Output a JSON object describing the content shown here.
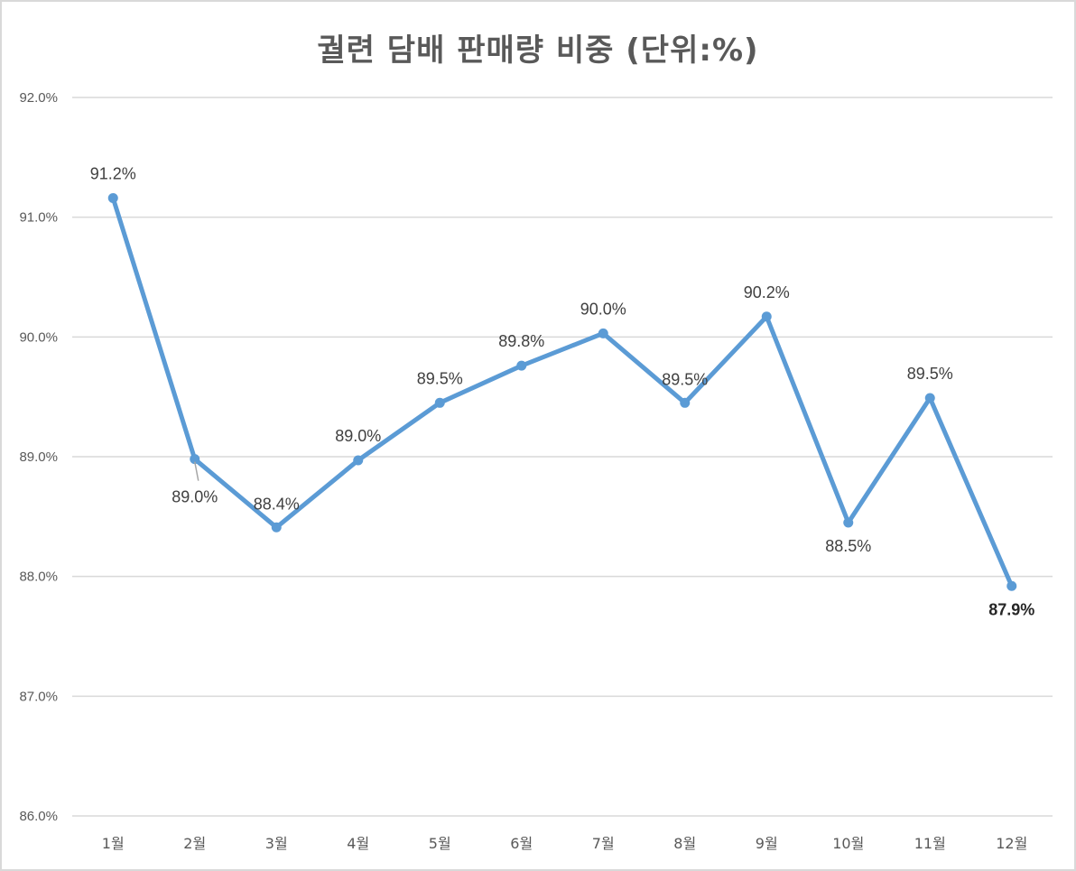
{
  "chart_data": {
    "type": "line",
    "title": "궐련 담배 판매량 비중 (단위:%)",
    "xlabel": "",
    "ylabel": "",
    "categories": [
      "1월",
      "2월",
      "3월",
      "4월",
      "5월",
      "6월",
      "7월",
      "8월",
      "9월",
      "10월",
      "11월",
      "12월"
    ],
    "series": [
      {
        "values": [
          91.16,
          88.98,
          88.41,
          88.97,
          89.45,
          89.76,
          90.03,
          89.45,
          90.17,
          88.45,
          89.49,
          87.92
        ],
        "data_labels": [
          "91.2%",
          "89.0%",
          "88.4%",
          "89.0%",
          "89.5%",
          "89.8%",
          "90.0%",
          "89.5%",
          "90.2%",
          "88.5%",
          "89.5%",
          "87.9%"
        ],
        "color": "#5b9bd5"
      }
    ],
    "ylim": [
      86.0,
      92.0
    ],
    "yticks": [
      "86.0%",
      "87.0%",
      "88.0%",
      "89.0%",
      "90.0%",
      "91.0%",
      "92.0%"
    ],
    "grid": true,
    "legend": "none",
    "highlighted_point": "12월"
  }
}
